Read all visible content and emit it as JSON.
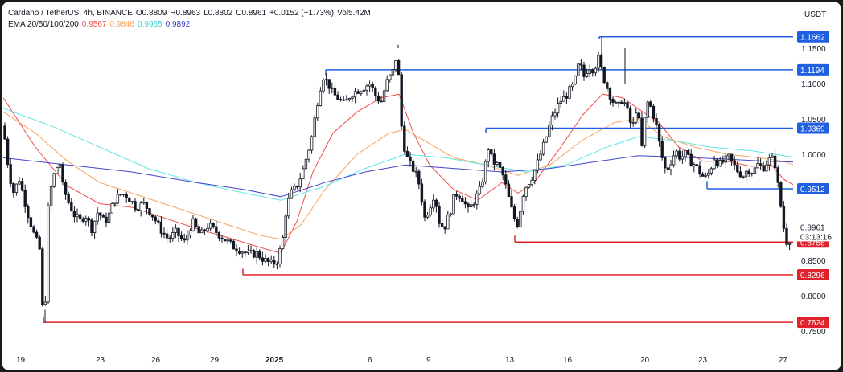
{
  "header": {
    "symbol": "Cardano / TetherUS, 4h, BINANCE",
    "o_label": "O",
    "o": "0.8809",
    "h_label": "H",
    "h": "0.8963",
    "l_label": "L",
    "l": "0.8802",
    "c_label": "C",
    "c": "0.8961",
    "change": "+0.0152 (+1.73%)",
    "vol_label": "Vol",
    "vol": "5.42M",
    "ema_label": "EMA 20/50/100/200",
    "ema20": "0.9567",
    "ema50": "0.9846",
    "ema100": "0.9965",
    "ema200": "0.9892"
  },
  "currency": "USDT",
  "colors": {
    "ema20": "#f0504a",
    "ema50": "#f7a35c",
    "ema100": "#5ee6e6",
    "ema200": "#4444cc",
    "resistance": "#1f5fe0",
    "support": "#e0202a",
    "candle": "#131722"
  },
  "chart_data": {
    "type": "candlestick",
    "timeframe": "4h",
    "ylim": [
      0.735,
      1.2
    ],
    "x_ticks": [
      "19",
      "23",
      "26",
      "29",
      "2025",
      "6",
      "9",
      "13",
      "16",
      "20",
      "23",
      "27"
    ],
    "y_ticks": [
      "0.7500",
      "0.8000",
      "0.8500",
      "0.9000",
      "0.9500",
      "1.0000",
      "1.0500",
      "1.1000",
      "1.1500"
    ],
    "current_price": "0.8961",
    "countdown": "03:13:16",
    "price_levels": [
      {
        "value": 1.1662,
        "label": "1.1662",
        "kind": "resistance"
      },
      {
        "value": 1.1194,
        "label": "1.1194",
        "kind": "resistance"
      },
      {
        "value": 1.0369,
        "label": "1.0369",
        "kind": "resistance"
      },
      {
        "value": 0.9512,
        "label": "0.9512",
        "kind": "resistance"
      },
      {
        "value": 0.8758,
        "label": "0.8758",
        "kind": "support"
      },
      {
        "value": 0.8296,
        "label": "0.8296",
        "kind": "support"
      },
      {
        "value": 0.7624,
        "label": "0.7624",
        "kind": "support"
      }
    ],
    "close_path": [
      [
        0,
        1.04
      ],
      [
        6,
        0.985
      ],
      [
        12,
        0.945
      ],
      [
        20,
        0.965
      ],
      [
        30,
        0.918
      ],
      [
        40,
        0.88
      ],
      [
        45,
        0.87
      ],
      [
        49,
        0.78
      ],
      [
        52,
        0.77
      ],
      [
        54,
        0.9
      ],
      [
        58,
        0.945
      ],
      [
        64,
        0.975
      ],
      [
        70,
        0.99
      ],
      [
        74,
        0.955
      ],
      [
        80,
        0.935
      ],
      [
        88,
        0.915
      ],
      [
        95,
        0.905
      ],
      [
        102,
        0.915
      ],
      [
        110,
        0.895
      ],
      [
        118,
        0.92
      ],
      [
        125,
        0.905
      ],
      [
        130,
        0.91
      ],
      [
        138,
        0.935
      ],
      [
        148,
        0.945
      ],
      [
        155,
        0.94
      ],
      [
        165,
        0.925
      ],
      [
        175,
        0.93
      ],
      [
        185,
        0.915
      ],
      [
        195,
        0.895
      ],
      [
        205,
        0.88
      ],
      [
        215,
        0.89
      ],
      [
        225,
        0.875
      ],
      [
        235,
        0.905
      ],
      [
        245,
        0.885
      ],
      [
        255,
        0.9
      ],
      [
        265,
        0.89
      ],
      [
        275,
        0.88
      ],
      [
        285,
        0.87
      ],
      [
        295,
        0.865
      ],
      [
        305,
        0.858
      ],
      [
        315,
        0.86
      ],
      [
        325,
        0.85
      ],
      [
        333,
        0.845
      ],
      [
        340,
        0.848
      ],
      [
        347,
        0.875
      ],
      [
        352,
        0.925
      ],
      [
        358,
        0.945
      ],
      [
        365,
        0.955
      ],
      [
        372,
        0.975
      ],
      [
        378,
        1.0
      ],
      [
        383,
        1.02
      ],
      [
        388,
        1.055
      ],
      [
        393,
        1.09
      ],
      [
        398,
        1.11
      ],
      [
        404,
        1.1
      ],
      [
        410,
        1.085
      ],
      [
        416,
        1.08
      ],
      [
        424,
        1.07
      ],
      [
        432,
        1.085
      ],
      [
        440,
        1.09
      ],
      [
        448,
        1.095
      ],
      [
        456,
        1.1
      ],
      [
        464,
        1.08
      ],
      [
        470,
        1.075
      ],
      [
        476,
        1.1
      ],
      [
        481,
        1.11
      ],
      [
        486,
        1.12
      ],
      [
        490,
        1.15
      ],
      [
        494,
        1.05
      ],
      [
        500,
        1.0
      ],
      [
        506,
        0.985
      ],
      [
        512,
        0.975
      ],
      [
        518,
        0.955
      ],
      [
        524,
        0.91
      ],
      [
        530,
        0.925
      ],
      [
        536,
        0.945
      ],
      [
        542,
        0.905
      ],
      [
        548,
        0.895
      ],
      [
        556,
        0.92
      ],
      [
        562,
        0.945
      ],
      [
        570,
        0.94
      ],
      [
        578,
        0.92
      ],
      [
        586,
        0.935
      ],
      [
        593,
        0.95
      ],
      [
        598,
        0.975
      ],
      [
        603,
        1.01
      ],
      [
        608,
        0.99
      ],
      [
        614,
        0.985
      ],
      [
        620,
        0.975
      ],
      [
        626,
        0.95
      ],
      [
        630,
        0.93
      ],
      [
        635,
        0.91
      ],
      [
        640,
        0.9
      ],
      [
        645,
        0.94
      ],
      [
        650,
        0.955
      ],
      [
        656,
        0.965
      ],
      [
        662,
        0.98
      ],
      [
        668,
        1.0
      ],
      [
        674,
        1.02
      ],
      [
        680,
        1.045
      ],
      [
        686,
        1.06
      ],
      [
        692,
        1.075
      ],
      [
        698,
        1.08
      ],
      [
        704,
        1.09
      ],
      [
        710,
        1.1
      ],
      [
        716,
        1.13
      ],
      [
        722,
        1.11
      ],
      [
        728,
        1.125
      ],
      [
        734,
        1.12
      ],
      [
        740,
        1.135
      ],
      [
        746,
        1.11
      ],
      [
        752,
        1.09
      ],
      [
        758,
        1.075
      ],
      [
        764,
        1.065
      ],
      [
        770,
        1.08
      ],
      [
        776,
        1.06
      ],
      [
        782,
        1.035
      ],
      [
        788,
        1.07
      ],
      [
        794,
        1.01
      ],
      [
        800,
        1.075
      ],
      [
        806,
        1.065
      ],
      [
        812,
        1.04
      ],
      [
        818,
        1.0
      ],
      [
        824,
        0.975
      ],
      [
        830,
        0.99
      ],
      [
        836,
        1.005
      ],
      [
        842,
        0.995
      ],
      [
        848,
        1.0
      ],
      [
        854,
        0.99
      ],
      [
        860,
        0.985
      ],
      [
        866,
        0.975
      ],
      [
        872,
        0.965
      ],
      [
        878,
        0.975
      ],
      [
        884,
        0.995
      ],
      [
        890,
        0.985
      ],
      [
        896,
        0.99
      ],
      [
        902,
        0.995
      ],
      [
        908,
        0.985
      ],
      [
        914,
        0.975
      ],
      [
        920,
        0.97
      ],
      [
        926,
        0.98
      ],
      [
        932,
        0.975
      ],
      [
        938,
        0.985
      ],
      [
        944,
        0.98
      ],
      [
        950,
        0.99
      ],
      [
        955,
        0.995
      ],
      [
        960,
        0.985
      ],
      [
        965,
        0.94
      ],
      [
        969,
        0.91
      ],
      [
        972,
        0.88
      ],
      [
        975,
        0.875
      ],
      [
        978,
        0.88
      ],
      [
        980,
        0.896
      ]
    ],
    "ema_paths": {
      "ema20": [
        [
          0,
          1.08
        ],
        [
          40,
          1.01
        ],
        [
          80,
          0.955
        ],
        [
          120,
          0.93
        ],
        [
          160,
          0.925
        ],
        [
          200,
          0.91
        ],
        [
          240,
          0.895
        ],
        [
          280,
          0.882
        ],
        [
          320,
          0.868
        ],
        [
          345,
          0.86
        ],
        [
          365,
          0.905
        ],
        [
          385,
          0.975
        ],
        [
          410,
          1.03
        ],
        [
          440,
          1.06
        ],
        [
          470,
          1.08
        ],
        [
          492,
          1.085
        ],
        [
          510,
          1.03
        ],
        [
          530,
          0.985
        ],
        [
          560,
          0.95
        ],
        [
          590,
          0.935
        ],
        [
          620,
          0.96
        ],
        [
          640,
          0.945
        ],
        [
          660,
          0.96
        ],
        [
          690,
          1.005
        ],
        [
          720,
          1.055
        ],
        [
          745,
          1.085
        ],
        [
          770,
          1.08
        ],
        [
          795,
          1.06
        ],
        [
          815,
          1.045
        ],
        [
          840,
          1.01
        ],
        [
          870,
          0.99
        ],
        [
          900,
          0.99
        ],
        [
          930,
          0.983
        ],
        [
          955,
          0.985
        ],
        [
          970,
          0.965
        ],
        [
          982,
          0.957
        ]
      ],
      "ema50": [
        [
          0,
          1.06
        ],
        [
          40,
          1.03
        ],
        [
          80,
          0.99
        ],
        [
          120,
          0.96
        ],
        [
          160,
          0.945
        ],
        [
          200,
          0.93
        ],
        [
          240,
          0.915
        ],
        [
          280,
          0.9
        ],
        [
          320,
          0.885
        ],
        [
          345,
          0.88
        ],
        [
          370,
          0.9
        ],
        [
          400,
          0.95
        ],
        [
          440,
          1.0
        ],
        [
          480,
          1.03
        ],
        [
          500,
          1.035
        ],
        [
          530,
          1.015
        ],
        [
          560,
          0.995
        ],
        [
          600,
          0.985
        ],
        [
          640,
          0.97
        ],
        [
          680,
          0.985
        ],
        [
          720,
          1.02
        ],
        [
          760,
          1.045
        ],
        [
          790,
          1.05
        ],
        [
          820,
          1.025
        ],
        [
          860,
          1.01
        ],
        [
          900,
          1.0
        ],
        [
          940,
          0.995
        ],
        [
          970,
          0.99
        ],
        [
          982,
          0.985
        ]
      ],
      "ema100": [
        [
          0,
          1.065
        ],
        [
          60,
          1.04
        ],
        [
          120,
          1.01
        ],
        [
          180,
          0.98
        ],
        [
          240,
          0.96
        ],
        [
          300,
          0.945
        ],
        [
          345,
          0.935
        ],
        [
          400,
          0.955
        ],
        [
          450,
          0.98
        ],
        [
          500,
          1.0
        ],
        [
          550,
          0.995
        ],
        [
          600,
          0.985
        ],
        [
          650,
          0.975
        ],
        [
          700,
          0.985
        ],
        [
          750,
          1.01
        ],
        [
          790,
          1.025
        ],
        [
          830,
          1.02
        ],
        [
          880,
          1.01
        ],
        [
          930,
          1.005
        ],
        [
          982,
          0.996
        ]
      ],
      "ema200": [
        [
          0,
          0.995
        ],
        [
          80,
          0.985
        ],
        [
          160,
          0.975
        ],
        [
          240,
          0.96
        ],
        [
          300,
          0.95
        ],
        [
          345,
          0.94
        ],
        [
          400,
          0.96
        ],
        [
          450,
          0.975
        ],
        [
          500,
          0.985
        ],
        [
          560,
          0.98
        ],
        [
          620,
          0.975
        ],
        [
          680,
          0.98
        ],
        [
          740,
          0.99
        ],
        [
          790,
          0.998
        ],
        [
          840,
          0.996
        ],
        [
          900,
          0.993
        ],
        [
          950,
          0.99
        ],
        [
          982,
          0.989
        ]
      ]
    }
  }
}
